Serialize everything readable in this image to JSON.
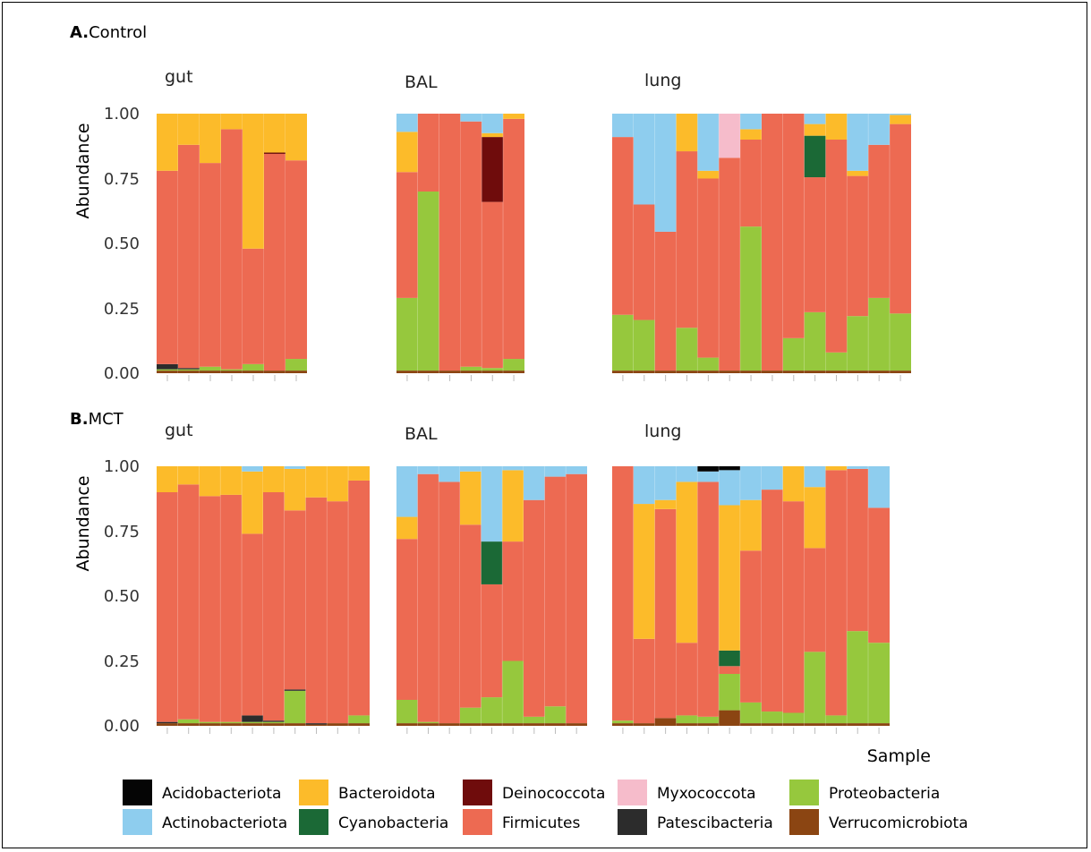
{
  "colors": {
    "Acidobacteriota": "#050505",
    "Actinobacteriota": "#8ecdee",
    "Bacteroidota": "#fcbb2a",
    "Cyanobacteria": "#1b6936",
    "Deinococcota": "#6f0c0c",
    "Firmicutes": "#ed6a52",
    "Myxococcota": "#f6bccb",
    "Patescibacteria": "#2c2c2c",
    "Proteobacteria": "#96c83d",
    "Verrucomicrobiota": "#8b4512"
  },
  "stack_order": [
    "Acidobacteriota",
    "Actinobacteriota",
    "Bacteroidota",
    "Cyanobacteria",
    "Deinococcota",
    "Myxococcota",
    "Firmicutes",
    "Patescibacteria",
    "Proteobacteria",
    "Verrucomicrobiota"
  ],
  "chart_data": [
    {
      "type": "bar",
      "stacked": true,
      "panel_title_bold": "A.",
      "panel_title": "Control",
      "ylabel": "Abundance",
      "xlabel": "",
      "ylim": [
        0,
        1
      ],
      "yticks": [
        "0.00",
        "0.25",
        "0.50",
        "0.75",
        "1.00"
      ],
      "facets": [
        {
          "label": "gut",
          "samples": [
            {
              "Bacteroidota": 0.22,
              "Firmicutes": 0.745,
              "Patescibacteria": 0.02,
              "Proteobacteria": 0.005,
              "Verrucomicrobiota": 0.01
            },
            {
              "Bacteroidota": 0.12,
              "Firmicutes": 0.86,
              "Patescibacteria": 0.005,
              "Proteobacteria": 0.005,
              "Verrucomicrobiota": 0.01
            },
            {
              "Bacteroidota": 0.19,
              "Firmicutes": 0.785,
              "Proteobacteria": 0.015,
              "Verrucomicrobiota": 0.01
            },
            {
              "Bacteroidota": 0.06,
              "Firmicutes": 0.925,
              "Proteobacteria": 0.005,
              "Verrucomicrobiota": 0.01
            },
            {
              "Bacteroidota": 0.52,
              "Firmicutes": 0.445,
              "Proteobacteria": 0.025,
              "Verrucomicrobiota": 0.01
            },
            {
              "Bacteroidota": 0.15,
              "Firmicutes": 0.835,
              "Deinococcota": 0.005,
              "Proteobacteria": 0.0,
              "Verrucomicrobiota": 0.01
            },
            {
              "Bacteroidota": 0.18,
              "Firmicutes": 0.765,
              "Proteobacteria": 0.045,
              "Verrucomicrobiota": 0.01
            }
          ]
        },
        {
          "label": "BAL",
          "samples": [
            {
              "Actinobacteriota": 0.07,
              "Bacteroidota": 0.155,
              "Firmicutes": 0.485,
              "Proteobacteria": 0.28,
              "Verrucomicrobiota": 0.01
            },
            {
              "Firmicutes": 0.3,
              "Proteobacteria": 0.69,
              "Verrucomicrobiota": 0.01
            },
            {
              "Firmicutes": 0.99,
              "Verrucomicrobiota": 0.01
            },
            {
              "Actinobacteriota": 0.03,
              "Firmicutes": 0.945,
              "Proteobacteria": 0.015,
              "Verrucomicrobiota": 0.01
            },
            {
              "Actinobacteriota": 0.075,
              "Bacteroidota": 0.015,
              "Deinococcota": 0.25,
              "Firmicutes": 0.64,
              "Proteobacteria": 0.01,
              "Verrucomicrobiota": 0.01
            },
            {
              "Bacteroidota": 0.02,
              "Firmicutes": 0.925,
              "Proteobacteria": 0.045,
              "Verrucomicrobiota": 0.01
            }
          ]
        },
        {
          "label": "lung",
          "samples": [
            {
              "Actinobacteriota": 0.09,
              "Firmicutes": 0.685,
              "Proteobacteria": 0.215,
              "Verrucomicrobiota": 0.01
            },
            {
              "Actinobacteriota": 0.35,
              "Firmicutes": 0.445,
              "Proteobacteria": 0.195,
              "Verrucomicrobiota": 0.01
            },
            {
              "Actinobacteriota": 0.455,
              "Firmicutes": 0.535,
              "Verrucomicrobiota": 0.01
            },
            {
              "Bacteroidota": 0.145,
              "Firmicutes": 0.68,
              "Proteobacteria": 0.165,
              "Verrucomicrobiota": 0.01
            },
            {
              "Actinobacteriota": 0.22,
              "Bacteroidota": 0.03,
              "Firmicutes": 0.69,
              "Proteobacteria": 0.05,
              "Verrucomicrobiota": 0.01
            },
            {
              "Firmicutes": 0.82,
              "Myxococcota": 0.17,
              "Verrucomicrobiota": 0.01
            },
            {
              "Actinobacteriota": 0.06,
              "Bacteroidota": 0.04,
              "Firmicutes": 0.335,
              "Proteobacteria": 0.555,
              "Verrucomicrobiota": 0.01
            },
            {
              "Firmicutes": 0.99,
              "Verrucomicrobiota": 0.01
            },
            {
              "Firmicutes": 0.865,
              "Proteobacteria": 0.125,
              "Verrucomicrobiota": 0.01
            },
            {
              "Actinobacteriota": 0.04,
              "Bacteroidota": 0.045,
              "Cyanobacteria": 0.16,
              "Firmicutes": 0.52,
              "Proteobacteria": 0.225,
              "Verrucomicrobiota": 0.01
            },
            {
              "Bacteroidota": 0.1,
              "Firmicutes": 0.82,
              "Proteobacteria": 0.07,
              "Verrucomicrobiota": 0.01
            },
            {
              "Actinobacteriota": 0.22,
              "Bacteroidota": 0.02,
              "Firmicutes": 0.54,
              "Proteobacteria": 0.21,
              "Verrucomicrobiota": 0.01
            },
            {
              "Actinobacteriota": 0.12,
              "Firmicutes": 0.59,
              "Proteobacteria": 0.28,
              "Verrucomicrobiota": 0.01
            },
            {
              "Actinobacteriota": 0.005,
              "Bacteroidota": 0.035,
              "Firmicutes": 0.73,
              "Proteobacteria": 0.22,
              "Verrucomicrobiota": 0.01
            }
          ]
        }
      ]
    },
    {
      "type": "bar",
      "stacked": true,
      "panel_title_bold": "B.",
      "panel_title": "MCT",
      "ylabel": "Abundance",
      "xlabel": "Sample",
      "ylim": [
        0,
        1
      ],
      "yticks": [
        "0.00",
        "0.25",
        "0.50",
        "0.75",
        "1.00"
      ],
      "facets": [
        {
          "label": "gut",
          "samples": [
            {
              "Bacteroidota": 0.1,
              "Firmicutes": 0.885,
              "Patescibacteria": 0.005,
              "Verrucomicrobiota": 0.01
            },
            {
              "Bacteroidota": 0.07,
              "Firmicutes": 0.905,
              "Proteobacteria": 0.015,
              "Verrucomicrobiota": 0.01
            },
            {
              "Bacteroidota": 0.115,
              "Firmicutes": 0.87,
              "Proteobacteria": 0.005,
              "Verrucomicrobiota": 0.01
            },
            {
              "Bacteroidota": 0.11,
              "Firmicutes": 0.875,
              "Proteobacteria": 0.005,
              "Verrucomicrobiota": 0.01
            },
            {
              "Actinobacteriota": 0.02,
              "Bacteroidota": 0.24,
              "Firmicutes": 0.7,
              "Patescibacteria": 0.025,
              "Proteobacteria": 0.005,
              "Verrucomicrobiota": 0.01
            },
            {
              "Bacteroidota": 0.1,
              "Firmicutes": 0.88,
              "Patescibacteria": 0.005,
              "Proteobacteria": 0.005,
              "Verrucomicrobiota": 0.01
            },
            {
              "Actinobacteriota": 0.01,
              "Bacteroidota": 0.16,
              "Firmicutes": 0.69,
              "Patescibacteria": 0.005,
              "Proteobacteria": 0.125,
              "Verrucomicrobiota": 0.01
            },
            {
              "Bacteroidota": 0.12,
              "Firmicutes": 0.87,
              "Patescibacteria": 0.005,
              "Verrucomicrobiota": 0.005
            },
            {
              "Bacteroidota": 0.135,
              "Firmicutes": 0.855,
              "Verrucomicrobiota": 0.01
            },
            {
              "Bacteroidota": 0.055,
              "Firmicutes": 0.905,
              "Proteobacteria": 0.03,
              "Verrucomicrobiota": 0.01
            }
          ]
        },
        {
          "label": "BAL",
          "samples": [
            {
              "Actinobacteriota": 0.195,
              "Bacteroidota": 0.085,
              "Firmicutes": 0.62,
              "Proteobacteria": 0.09,
              "Verrucomicrobiota": 0.01
            },
            {
              "Actinobacteriota": 0.03,
              "Firmicutes": 0.955,
              "Proteobacteria": 0.005,
              "Verrucomicrobiota": 0.01
            },
            {
              "Actinobacteriota": 0.06,
              "Firmicutes": 0.93,
              "Proteobacteria": 0.0,
              "Verrucomicrobiota": 0.01
            },
            {
              "Actinobacteriota": 0.02,
              "Bacteroidota": 0.205,
              "Firmicutes": 0.705,
              "Proteobacteria": 0.06,
              "Verrucomicrobiota": 0.01
            },
            {
              "Actinobacteriota": 0.29,
              "Cyanobacteria": 0.165,
              "Firmicutes": 0.435,
              "Proteobacteria": 0.1,
              "Verrucomicrobiota": 0.01
            },
            {
              "Actinobacteriota": 0.015,
              "Bacteroidota": 0.275,
              "Firmicutes": 0.46,
              "Proteobacteria": 0.24,
              "Verrucomicrobiota": 0.01
            },
            {
              "Actinobacteriota": 0.13,
              "Firmicutes": 0.835,
              "Proteobacteria": 0.025,
              "Verrucomicrobiota": 0.01
            },
            {
              "Actinobacteriota": 0.04,
              "Firmicutes": 0.885,
              "Proteobacteria": 0.065,
              "Verrucomicrobiota": 0.01
            },
            {
              "Actinobacteriota": 0.03,
              "Firmicutes": 0.96,
              "Verrucomicrobiota": 0.01
            }
          ]
        },
        {
          "label": "lung",
          "samples": [
            {
              "Firmicutes": 0.98,
              "Proteobacteria": 0.01,
              "Verrucomicrobiota": 0.01
            },
            {
              "Actinobacteriota": 0.145,
              "Bacteroidota": 0.52,
              "Firmicutes": 0.325,
              "Verrucomicrobiota": 0.01
            },
            {
              "Actinobacteriota": 0.13,
              "Bacteroidota": 0.035,
              "Firmicutes": 0.805,
              "Verrucomicrobiota": 0.03
            },
            {
              "Actinobacteriota": 0.06,
              "Bacteroidota": 0.62,
              "Firmicutes": 0.28,
              "Proteobacteria": 0.03,
              "Verrucomicrobiota": 0.01
            },
            {
              "Acidobacteriota": 0.02,
              "Actinobacteriota": 0.04,
              "Firmicutes": 0.905,
              "Proteobacteria": 0.025,
              "Verrucomicrobiota": 0.01
            },
            {
              "Acidobacteriota": 0.015,
              "Actinobacteriota": 0.135,
              "Bacteroidota": 0.56,
              "Cyanobacteria": 0.06,
              "Firmicutes": 0.03,
              "Proteobacteria": 0.14,
              "Verrucomicrobiota": 0.06
            },
            {
              "Actinobacteriota": 0.13,
              "Bacteroidota": 0.195,
              "Firmicutes": 0.585,
              "Proteobacteria": 0.08,
              "Verrucomicrobiota": 0.01
            },
            {
              "Actinobacteriota": 0.09,
              "Firmicutes": 0.855,
              "Proteobacteria": 0.045,
              "Verrucomicrobiota": 0.01
            },
            {
              "Bacteroidota": 0.135,
              "Firmicutes": 0.815,
              "Proteobacteria": 0.04,
              "Verrucomicrobiota": 0.01
            },
            {
              "Actinobacteriota": 0.08,
              "Bacteroidota": 0.235,
              "Firmicutes": 0.4,
              "Proteobacteria": 0.275,
              "Verrucomicrobiota": 0.01
            },
            {
              "Bacteroidota": 0.015,
              "Firmicutes": 0.945,
              "Proteobacteria": 0.03,
              "Verrucomicrobiota": 0.01
            },
            {
              "Actinobacteriota": 0.01,
              "Firmicutes": 0.625,
              "Proteobacteria": 0.355,
              "Verrucomicrobiota": 0.01
            },
            {
              "Actinobacteriota": 0.16,
              "Firmicutes": 0.52,
              "Proteobacteria": 0.31,
              "Verrucomicrobiota": 0.01
            }
          ]
        }
      ]
    }
  ],
  "legend": {
    "placement": "bottom",
    "items": [
      "Acidobacteriota",
      "Actinobacteriota",
      "Bacteroidota",
      "Cyanobacteria",
      "Deinococcota",
      "Firmicutes",
      "Myxococcota",
      "Patescibacteria",
      "Proteobacteria",
      "Verrucomicrobiota"
    ]
  }
}
